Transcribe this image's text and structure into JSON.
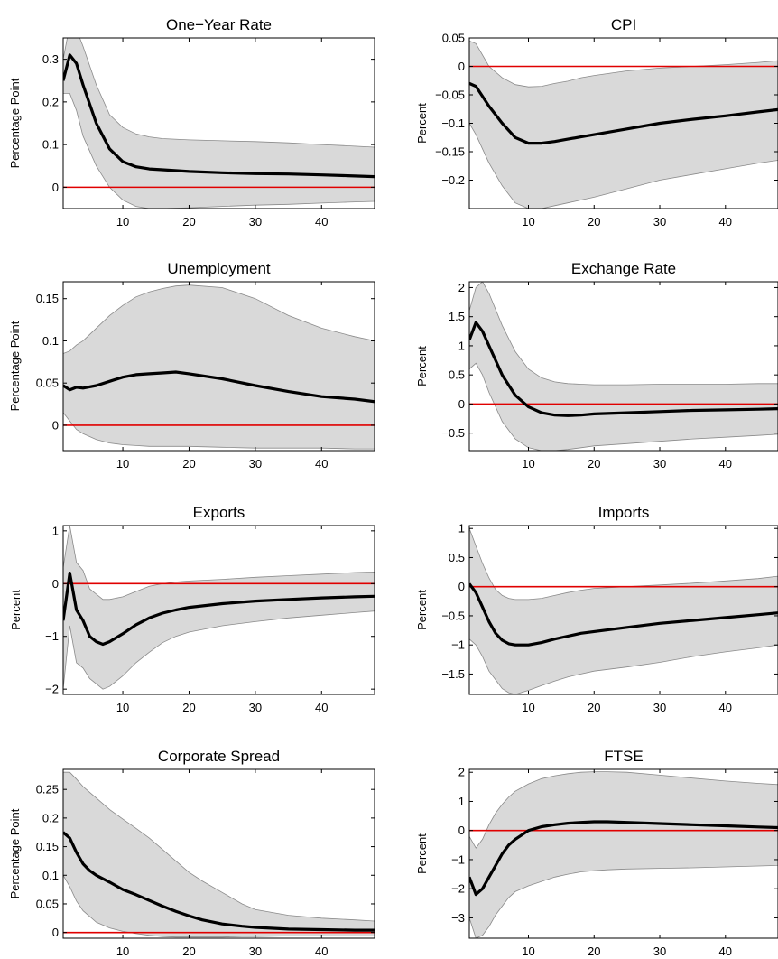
{
  "chart_data": [
    {
      "type": "line",
      "title": "One−Year Rate",
      "ylabel": "Percentage Point",
      "xlabel": "",
      "xlim": [
        1,
        48
      ],
      "ylim": [
        -0.05,
        0.35
      ],
      "xticks": [
        10,
        20,
        30,
        40
      ],
      "xtick_labels": [
        "10",
        "20",
        "30",
        "40"
      ],
      "yticks": [
        0,
        0.1,
        0.2,
        0.3
      ],
      "ytick_labels": [
        "0",
        "0.1",
        "0.2",
        "0.3"
      ],
      "zero_line": 0,
      "zero_line_color": "#e00000",
      "band_color": "#d9d9d9",
      "x": [
        1,
        2,
        3,
        4,
        6,
        8,
        10,
        12,
        14,
        16,
        20,
        25,
        30,
        35,
        40,
        44,
        48
      ],
      "series": [
        {
          "name": "",
          "role": "median",
          "values": [
            0.25,
            0.31,
            0.29,
            0.24,
            0.15,
            0.09,
            0.06,
            0.048,
            0.043,
            0.041,
            0.037,
            0.034,
            0.032,
            0.031,
            0.029,
            0.027,
            0.025
          ]
        },
        {
          "name": "",
          "role": "upper",
          "values": [
            0.3,
            0.38,
            0.37,
            0.33,
            0.24,
            0.17,
            0.14,
            0.125,
            0.118,
            0.114,
            0.111,
            0.109,
            0.107,
            0.104,
            0.1,
            0.097,
            0.094
          ]
        },
        {
          "name": "",
          "role": "lower",
          "values": [
            0.22,
            0.22,
            0.18,
            0.12,
            0.05,
            0.0,
            -0.03,
            -0.045,
            -0.05,
            -0.05,
            -0.048,
            -0.045,
            -0.042,
            -0.04,
            -0.037,
            -0.035,
            -0.033
          ]
        }
      ]
    },
    {
      "type": "line",
      "title": "CPI",
      "ylabel": "Percent",
      "xlabel": "",
      "xlim": [
        1,
        48
      ],
      "ylim": [
        -0.25,
        0.05
      ],
      "xticks": [
        10,
        20,
        30,
        40
      ],
      "xtick_labels": [
        "10",
        "20",
        "30",
        "40"
      ],
      "yticks": [
        0.05,
        0,
        -0.05,
        -0.1,
        -0.15,
        -0.2
      ],
      "ytick_labels": [
        "0.05",
        "0",
        "−0.05",
        "−0.1",
        "−0.15",
        "−0.2"
      ],
      "zero_line": 0,
      "zero_line_color": "#e00000",
      "band_color": "#d9d9d9",
      "x": [
        1,
        2,
        4,
        6,
        8,
        10,
        12,
        14,
        16,
        18,
        20,
        25,
        30,
        35,
        40,
        45,
        48
      ],
      "series": [
        {
          "name": "",
          "role": "median",
          "values": [
            -0.03,
            -0.035,
            -0.07,
            -0.1,
            -0.125,
            -0.135,
            -0.135,
            -0.132,
            -0.128,
            -0.124,
            -0.12,
            -0.11,
            -0.1,
            -0.093,
            -0.087,
            -0.08,
            -0.076
          ]
        },
        {
          "name": "",
          "role": "upper",
          "values": [
            0.045,
            0.04,
            0.0,
            -0.02,
            -0.032,
            -0.036,
            -0.035,
            -0.03,
            -0.026,
            -0.02,
            -0.016,
            -0.008,
            -0.003,
            0.0,
            0.003,
            0.007,
            0.01
          ]
        },
        {
          "name": "",
          "role": "lower",
          "values": [
            -0.1,
            -0.12,
            -0.17,
            -0.21,
            -0.24,
            -0.25,
            -0.25,
            -0.245,
            -0.24,
            -0.235,
            -0.23,
            -0.215,
            -0.2,
            -0.19,
            -0.18,
            -0.17,
            -0.165
          ]
        }
      ]
    },
    {
      "type": "line",
      "title": "Unemployment",
      "ylabel": "Percentage Point",
      "xlabel": "",
      "xlim": [
        1,
        48
      ],
      "ylim": [
        -0.03,
        0.17
      ],
      "xticks": [
        10,
        20,
        30,
        40
      ],
      "xtick_labels": [
        "10",
        "20",
        "30",
        "40"
      ],
      "yticks": [
        0,
        0.05,
        0.1,
        0.15
      ],
      "ytick_labels": [
        "0",
        "0.05",
        "0.1",
        "0.15"
      ],
      "zero_line": 0,
      "zero_line_color": "#e00000",
      "band_color": "#d9d9d9",
      "x": [
        1,
        2,
        3,
        4,
        6,
        8,
        10,
        12,
        14,
        16,
        18,
        20,
        25,
        30,
        35,
        40,
        45,
        48
      ],
      "series": [
        {
          "name": "",
          "role": "median",
          "values": [
            0.047,
            0.042,
            0.045,
            0.044,
            0.047,
            0.052,
            0.057,
            0.06,
            0.061,
            0.062,
            0.063,
            0.061,
            0.055,
            0.047,
            0.04,
            0.034,
            0.031,
            0.028
          ]
        },
        {
          "name": "",
          "role": "upper",
          "values": [
            0.085,
            0.088,
            0.095,
            0.1,
            0.115,
            0.13,
            0.142,
            0.152,
            0.158,
            0.162,
            0.165,
            0.166,
            0.163,
            0.15,
            0.13,
            0.115,
            0.105,
            0.1
          ]
        },
        {
          "name": "",
          "role": "lower",
          "values": [
            0.015,
            0.005,
            -0.005,
            -0.01,
            -0.017,
            -0.021,
            -0.023,
            -0.024,
            -0.025,
            -0.025,
            -0.025,
            -0.025,
            -0.026,
            -0.027,
            -0.027,
            -0.027,
            -0.028,
            -0.028
          ]
        }
      ]
    },
    {
      "type": "line",
      "title": "Exchange Rate",
      "ylabel": "Percent",
      "xlabel": "",
      "xlim": [
        1,
        48
      ],
      "ylim": [
        -0.8,
        2.1
      ],
      "xticks": [
        10,
        20,
        30,
        40
      ],
      "xtick_labels": [
        "10",
        "20",
        "30",
        "40"
      ],
      "yticks": [
        2,
        1.5,
        1,
        0.5,
        0,
        -0.5
      ],
      "ytick_labels": [
        "2",
        "1.5",
        "1",
        "0.5",
        "0",
        "−0.5"
      ],
      "zero_line": 0,
      "zero_line_color": "#e00000",
      "band_color": "#d9d9d9",
      "x": [
        1,
        2,
        3,
        4,
        6,
        8,
        10,
        12,
        14,
        16,
        18,
        20,
        25,
        30,
        35,
        40,
        45,
        48
      ],
      "series": [
        {
          "name": "",
          "role": "median",
          "values": [
            1.1,
            1.4,
            1.25,
            1.0,
            0.5,
            0.15,
            -0.05,
            -0.15,
            -0.19,
            -0.2,
            -0.19,
            -0.17,
            -0.15,
            -0.13,
            -0.11,
            -0.1,
            -0.09,
            -0.08
          ]
        },
        {
          "name": "",
          "role": "upper",
          "values": [
            1.6,
            2.0,
            2.1,
            1.9,
            1.35,
            0.9,
            0.6,
            0.45,
            0.38,
            0.35,
            0.34,
            0.33,
            0.33,
            0.34,
            0.34,
            0.34,
            0.35,
            0.35
          ]
        },
        {
          "name": "",
          "role": "lower",
          "values": [
            0.6,
            0.7,
            0.5,
            0.2,
            -0.3,
            -0.6,
            -0.75,
            -0.8,
            -0.8,
            -0.78,
            -0.75,
            -0.72,
            -0.68,
            -0.64,
            -0.6,
            -0.57,
            -0.54,
            -0.52
          ]
        }
      ]
    },
    {
      "type": "line",
      "title": "Exports",
      "ylabel": "Percent",
      "xlabel": "",
      "xlim": [
        1,
        48
      ],
      "ylim": [
        -2.1,
        1.1
      ],
      "xticks": [
        10,
        20,
        30,
        40
      ],
      "xtick_labels": [
        "10",
        "20",
        "30",
        "40"
      ],
      "yticks": [
        1,
        0,
        -1,
        -2
      ],
      "ytick_labels": [
        "1",
        "0",
        "−1",
        "−2"
      ],
      "zero_line": 0,
      "zero_line_color": "#e00000",
      "band_color": "#d9d9d9",
      "x": [
        1,
        2,
        3,
        4,
        5,
        6,
        7,
        8,
        10,
        12,
        14,
        16,
        18,
        20,
        25,
        30,
        35,
        40,
        45,
        48
      ],
      "series": [
        {
          "name": "",
          "role": "median",
          "values": [
            -0.7,
            0.2,
            -0.5,
            -0.7,
            -1.0,
            -1.1,
            -1.15,
            -1.1,
            -0.95,
            -0.78,
            -0.65,
            -0.56,
            -0.5,
            -0.45,
            -0.38,
            -0.33,
            -0.3,
            -0.27,
            -0.25,
            -0.24
          ]
        },
        {
          "name": "",
          "role": "upper",
          "values": [
            0.3,
            1.1,
            0.4,
            0.25,
            -0.1,
            -0.2,
            -0.3,
            -0.3,
            -0.25,
            -0.15,
            -0.05,
            0.0,
            0.03,
            0.05,
            0.08,
            0.12,
            0.15,
            0.18,
            0.21,
            0.22
          ]
        },
        {
          "name": "",
          "role": "lower",
          "values": [
            -2.0,
            -0.8,
            -1.5,
            -1.6,
            -1.8,
            -1.9,
            -2.0,
            -1.95,
            -1.75,
            -1.5,
            -1.3,
            -1.12,
            -1.0,
            -0.92,
            -0.8,
            -0.72,
            -0.65,
            -0.6,
            -0.55,
            -0.52
          ]
        }
      ]
    },
    {
      "type": "line",
      "title": "Imports",
      "ylabel": "Percent",
      "xlabel": "",
      "xlim": [
        1,
        48
      ],
      "ylim": [
        -1.85,
        1.05
      ],
      "xticks": [
        10,
        20,
        30,
        40
      ],
      "xtick_labels": [
        "10",
        "20",
        "30",
        "40"
      ],
      "yticks": [
        1,
        0.5,
        0,
        -0.5,
        -1,
        -1.5
      ],
      "ytick_labels": [
        "1",
        "0.5",
        "0",
        "−0.5",
        "−1",
        "−1.5"
      ],
      "zero_line": 0,
      "zero_line_color": "#e00000",
      "band_color": "#d9d9d9",
      "x": [
        1,
        2,
        3,
        4,
        5,
        6,
        7,
        8,
        10,
        12,
        14,
        16,
        18,
        20,
        25,
        30,
        35,
        40,
        45,
        48
      ],
      "series": [
        {
          "name": "",
          "role": "median",
          "values": [
            0.05,
            -0.1,
            -0.35,
            -0.6,
            -0.8,
            -0.92,
            -0.98,
            -1.0,
            -1.0,
            -0.96,
            -0.9,
            -0.85,
            -0.8,
            -0.77,
            -0.7,
            -0.63,
            -0.58,
            -0.53,
            -0.48,
            -0.45
          ]
        },
        {
          "name": "",
          "role": "upper",
          "values": [
            1.0,
            0.7,
            0.4,
            0.15,
            -0.05,
            -0.15,
            -0.2,
            -0.22,
            -0.22,
            -0.2,
            -0.15,
            -0.1,
            -0.06,
            -0.03,
            0.0,
            0.03,
            0.06,
            0.1,
            0.14,
            0.18
          ]
        },
        {
          "name": "",
          "role": "lower",
          "values": [
            -0.9,
            -1.0,
            -1.2,
            -1.45,
            -1.6,
            -1.75,
            -1.82,
            -1.85,
            -1.78,
            -1.7,
            -1.62,
            -1.55,
            -1.5,
            -1.45,
            -1.38,
            -1.3,
            -1.2,
            -1.12,
            -1.05,
            -1.0
          ]
        }
      ]
    },
    {
      "type": "line",
      "title": "Corporate Spread",
      "ylabel": "Percentage Point",
      "xlabel": "",
      "xlim": [
        1,
        48
      ],
      "ylim": [
        -0.01,
        0.285
      ],
      "xticks": [
        10,
        20,
        30,
        40
      ],
      "xtick_labels": [
        "10",
        "20",
        "30",
        "40"
      ],
      "yticks": [
        0.25,
        0.2,
        0.15,
        0.1,
        0.05,
        0
      ],
      "ytick_labels": [
        "0.25",
        "0.2",
        "0.15",
        "0.1",
        "0.05",
        "0"
      ],
      "zero_line": 0,
      "zero_line_color": "#e00000",
      "band_color": "#d9d9d9",
      "x": [
        1,
        2,
        3,
        4,
        5,
        6,
        8,
        10,
        12,
        14,
        16,
        18,
        20,
        22,
        25,
        28,
        30,
        35,
        40,
        45,
        48
      ],
      "series": [
        {
          "name": "",
          "role": "median",
          "values": [
            0.175,
            0.165,
            0.14,
            0.12,
            0.108,
            0.1,
            0.088,
            0.075,
            0.066,
            0.056,
            0.046,
            0.037,
            0.029,
            0.022,
            0.015,
            0.011,
            0.009,
            0.006,
            0.005,
            0.004,
            0.004
          ]
        },
        {
          "name": "",
          "role": "upper",
          "values": [
            0.28,
            0.28,
            0.268,
            0.255,
            0.245,
            0.235,
            0.215,
            0.198,
            0.182,
            0.165,
            0.145,
            0.125,
            0.105,
            0.09,
            0.07,
            0.05,
            0.04,
            0.03,
            0.025,
            0.022,
            0.02
          ]
        },
        {
          "name": "",
          "role": "lower",
          "values": [
            0.1,
            0.08,
            0.055,
            0.038,
            0.028,
            0.018,
            0.008,
            0.002,
            -0.002,
            -0.005,
            -0.007,
            -0.008,
            -0.008,
            -0.008,
            -0.008,
            -0.007,
            -0.007,
            -0.006,
            -0.006,
            -0.006,
            -0.006
          ]
        }
      ]
    },
    {
      "type": "line",
      "title": "FTSE",
      "ylabel": "Percent",
      "xlabel": "",
      "xlim": [
        1,
        48
      ],
      "ylim": [
        -3.7,
        2.1
      ],
      "xticks": [
        10,
        20,
        30,
        40
      ],
      "xtick_labels": [
        "10",
        "20",
        "30",
        "40"
      ],
      "yticks": [
        2,
        1,
        0,
        -1,
        -2,
        -3
      ],
      "ytick_labels": [
        "2",
        "1",
        "0",
        "−1",
        "−2",
        "−3"
      ],
      "zero_line": 0,
      "zero_line_color": "#e00000",
      "band_color": "#d9d9d9",
      "x": [
        1,
        2,
        3,
        4,
        5,
        6,
        7,
        8,
        10,
        12,
        14,
        16,
        18,
        20,
        22,
        25,
        30,
        35,
        40,
        45,
        48
      ],
      "series": [
        {
          "name": "",
          "role": "median",
          "values": [
            -1.6,
            -2.2,
            -2.0,
            -1.6,
            -1.2,
            -0.8,
            -0.5,
            -0.3,
            0.0,
            0.13,
            0.2,
            0.25,
            0.28,
            0.3,
            0.3,
            0.28,
            0.24,
            0.2,
            0.16,
            0.12,
            0.1
          ]
        },
        {
          "name": "",
          "role": "upper",
          "values": [
            -0.2,
            -0.6,
            -0.3,
            0.2,
            0.6,
            0.9,
            1.15,
            1.35,
            1.6,
            1.78,
            1.88,
            1.95,
            2.0,
            2.02,
            2.02,
            2.0,
            1.9,
            1.8,
            1.7,
            1.62,
            1.58
          ]
        },
        {
          "name": "",
          "role": "lower",
          "values": [
            -3.0,
            -3.7,
            -3.6,
            -3.3,
            -2.9,
            -2.6,
            -2.3,
            -2.1,
            -1.9,
            -1.75,
            -1.6,
            -1.5,
            -1.42,
            -1.38,
            -1.35,
            -1.32,
            -1.3,
            -1.28,
            -1.25,
            -1.22,
            -1.2
          ]
        }
      ]
    }
  ]
}
